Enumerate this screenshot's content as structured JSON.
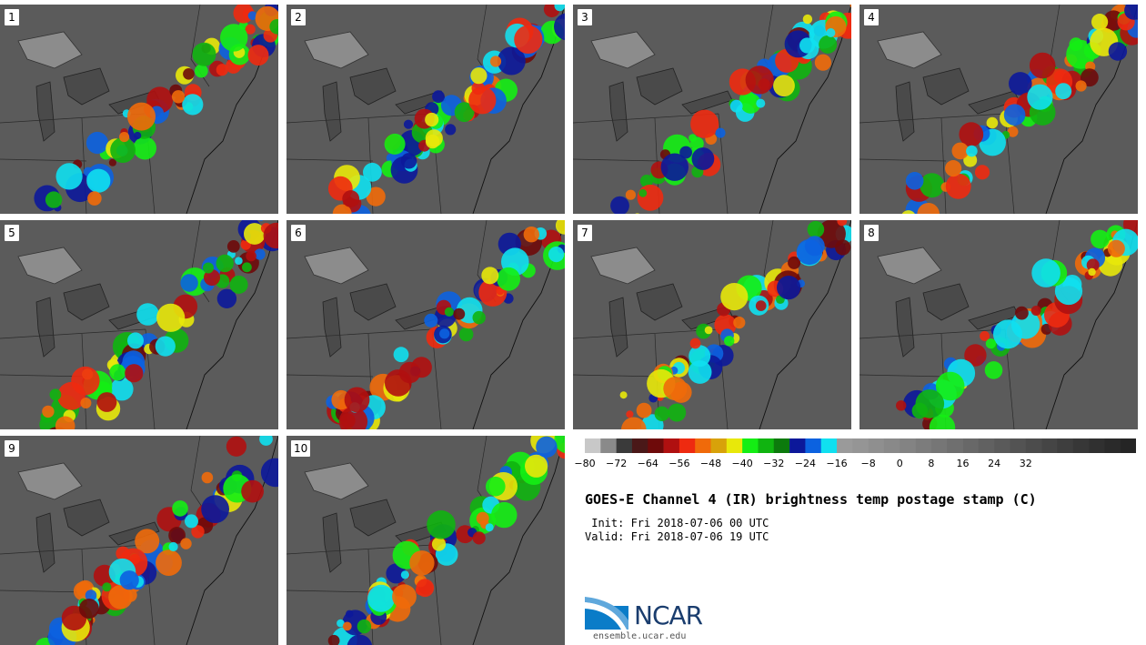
{
  "stamps": [
    {
      "label": "1",
      "seed": 11
    },
    {
      "label": "2",
      "seed": 23
    },
    {
      "label": "3",
      "seed": 37
    },
    {
      "label": "4",
      "seed": 41
    },
    {
      "label": "5",
      "seed": 53
    },
    {
      "label": "6",
      "seed": 67
    },
    {
      "label": "7",
      "seed": 71
    },
    {
      "label": "8",
      "seed": 89
    },
    {
      "label": "9",
      "seed": 97
    },
    {
      "label": "10",
      "seed": 101
    }
  ],
  "colorbar": {
    "colors": [
      "#c8c8c8",
      "#8a8a8a",
      "#3a3a3a",
      "#4a1818",
      "#6e0a0a",
      "#b01010",
      "#ee2a10",
      "#f06a0a",
      "#d8a20a",
      "#e8e80a",
      "#14ee14",
      "#10b410",
      "#0c7a0c",
      "#0c189a",
      "#0c62e0",
      "#10e0f0",
      "#9a9a9a",
      "#959595",
      "#8f8f8f",
      "#898989",
      "#838383",
      "#7c7c7c",
      "#767676",
      "#6f6f6f",
      "#686868",
      "#616161",
      "#5a5a5a",
      "#535353",
      "#4c4c4c",
      "#454545",
      "#3e3e3e",
      "#373737",
      "#303030",
      "#2a2a2a",
      "#252525"
    ],
    "ticks": [
      "−80",
      "−72",
      "−64",
      "−56",
      "−48",
      "−40",
      "−32",
      "−24",
      "−16",
      "−8",
      "0",
      "8",
      "16",
      "24",
      "32"
    ]
  },
  "title": "GOES-E Channel 4 (IR) brightness temp postage stamp (C)",
  "init_line": " Init: Fri 2018-07-06 00 UTC",
  "valid_line": "Valid: Fri 2018-07-06 19 UTC",
  "logo": {
    "text": "NCAR",
    "url": "ensemble.ucar.edu"
  }
}
